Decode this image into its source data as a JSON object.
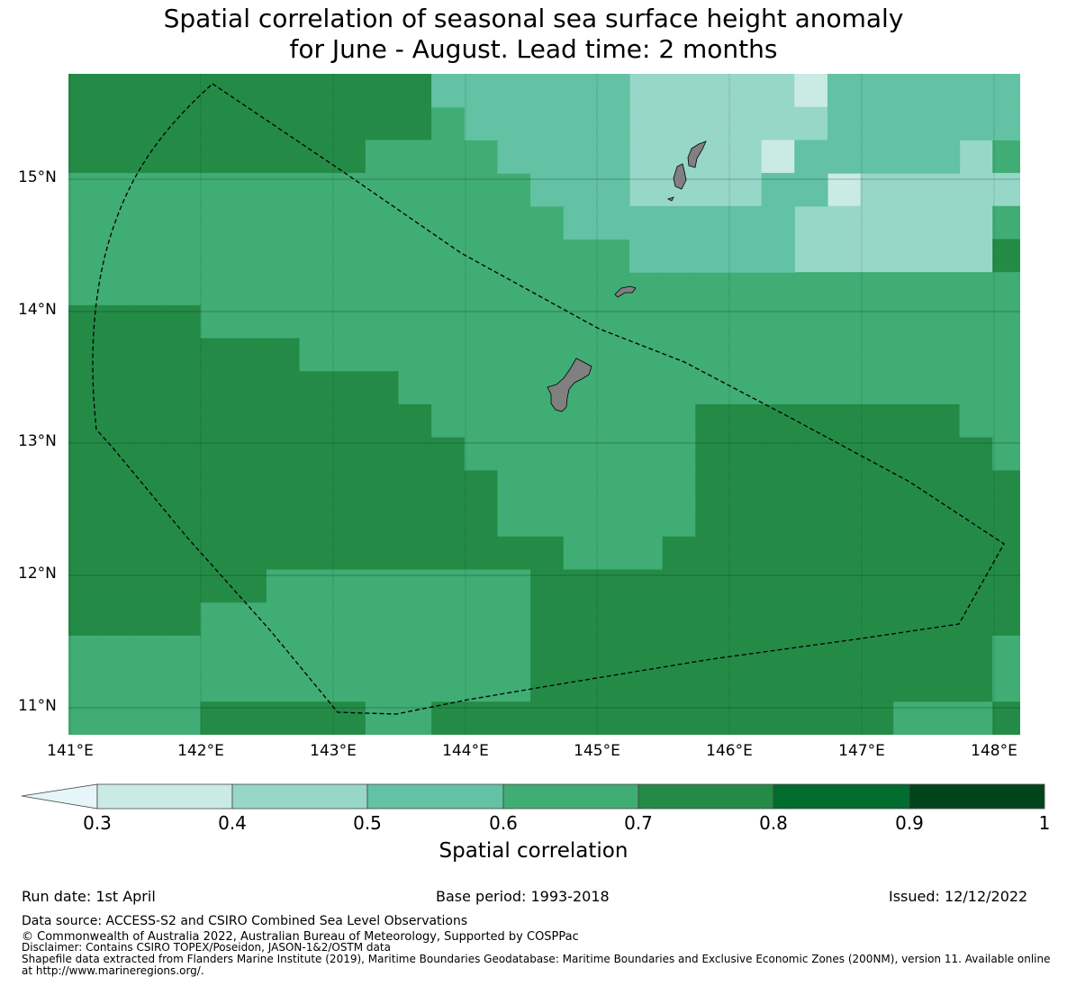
{
  "title_line1": "Spatial correlation of seasonal sea surface height anomaly",
  "title_line2": "for June - August. Lead time: 2 months",
  "lat_ticks": [
    "15°N",
    "14°N",
    "13°N",
    "12°N",
    "11°N"
  ],
  "lon_ticks": [
    "141°E",
    "142°E",
    "143°E",
    "144°E",
    "145°E",
    "146°E",
    "147°E",
    "148°E"
  ],
  "colorbar": {
    "label": "Spatial correlation",
    "ticks": [
      "0.3",
      "0.4",
      "0.5",
      "0.6",
      "0.7",
      "0.8",
      "0.9",
      "1"
    ],
    "colors": [
      "#c9ebe4",
      "#97d7c8",
      "#62c2a3",
      "#40ad74",
      "#248b47",
      "#006d2e",
      "#00441c"
    ],
    "under_color": "#e5f5f9"
  },
  "footer": {
    "run_date": "Run date: 1st April",
    "base_period": "Base period: 1993-2018",
    "issued": "Issued: 12/12/2022",
    "data_source": "Data source: ACCESS-S2 and CSIRO Combined Sea Level Observations",
    "copyright": "© Commonwealth of Australia 2022, Australian Bureau of Meteorology, Supported by COSPPac",
    "disclaimer": "Disclaimer: Contains CSIRO TOPEX/Poseidon, JASON-1&2/OSTM data",
    "shapefile1": "Shapefile data extracted from Flanders Marine Institute (2019), Maritime Boundaries Geodatabase: Maritime Boundaries and Exclusive Economic Zones (200NM), version 11. Available online",
    "shapefile2": "at http://www.marineregions.org/."
  }
}
